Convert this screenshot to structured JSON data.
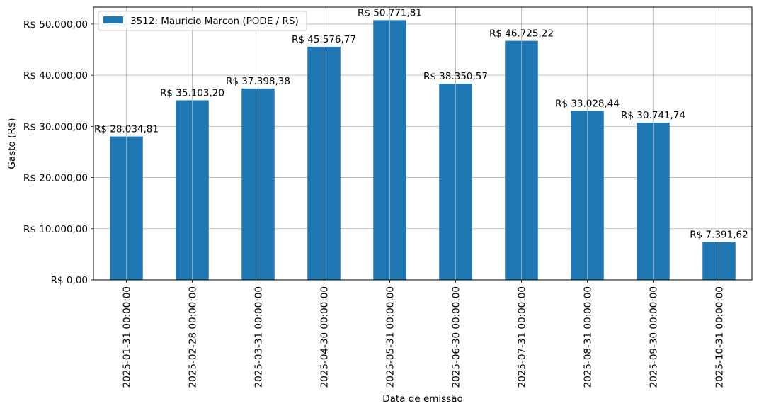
{
  "chart_data": {
    "type": "bar",
    "categories": [
      "2025-01-31 00:00:00",
      "2025-02-28 00:00:00",
      "2025-03-31 00:00:00",
      "2025-04-30 00:00:00",
      "2025-05-31 00:00:00",
      "2025-06-30 00:00:00",
      "2025-07-31 00:00:00",
      "2025-08-31 00:00:00",
      "2025-09-30 00:00:00",
      "2025-10-31 00:00:00"
    ],
    "series": [
      {
        "name": "3512: Mauricio Marcon (PODE / RS)",
        "color": "#1f77b4",
        "values": [
          28034.81,
          35103.2,
          37398.38,
          45576.77,
          50771.81,
          38350.57,
          46725.22,
          33028.44,
          30741.74,
          7391.62
        ],
        "data_labels": [
          "R$ 28.034,81",
          "R$ 35.103,20",
          "R$ 37.398,38",
          "R$ 45.576,77",
          "R$ 50.771,81",
          "R$ 38.350,57",
          "R$ 46.725,22",
          "R$ 33.028,44",
          "R$ 30.741,74",
          "R$ 7.391,62"
        ]
      }
    ],
    "xlabel": "Data de emissão",
    "ylabel": "Gasto (R$)",
    "ylim": [
      0,
      53312
    ],
    "yticks": [
      0,
      10000,
      20000,
      30000,
      40000,
      50000
    ],
    "ytick_labels": [
      "R$ 0,00",
      "R$ 10.000,00",
      "R$ 20.000,00",
      "R$ 30.000,00",
      "R$ 40.000,00",
      "R$ 50.000,00"
    ],
    "grid": true,
    "legend_position": "top-left"
  }
}
